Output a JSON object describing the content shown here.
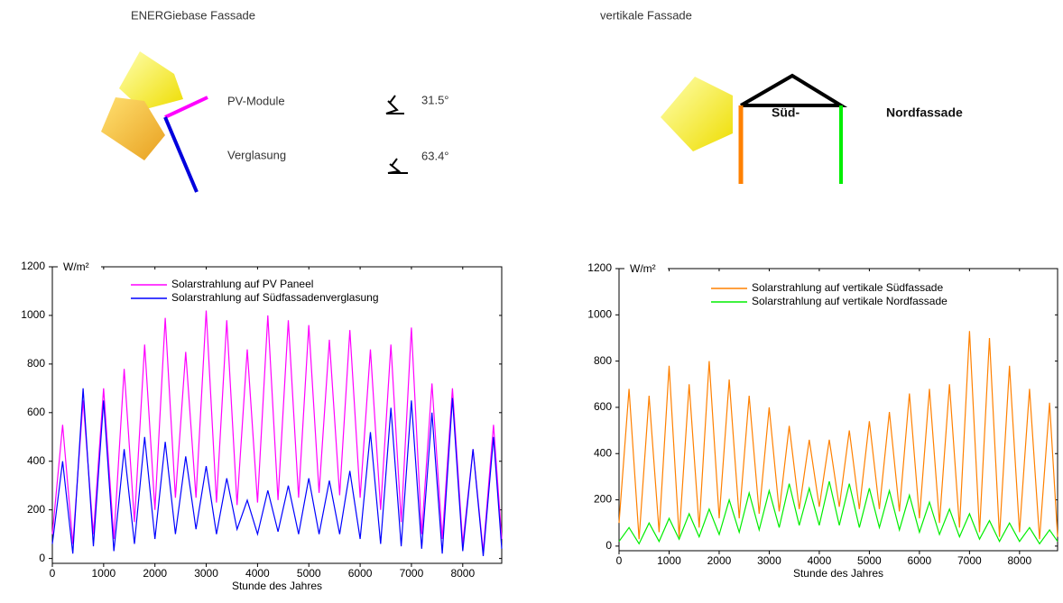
{
  "diagram": {
    "left_title": "ENERGiebase Fassade",
    "pv_label": "PV-Module",
    "pv_angle": "31.5°",
    "glass_label": "Verglasung",
    "glass_angle": "63.4°",
    "right_title": "vertikale Fassade",
    "south_label": "Süd-",
    "north_label": "Nordfassade"
  },
  "chart_data": [
    {
      "type": "line",
      "y_label": "W/m²",
      "x_label": "Stunde des Jahres",
      "x": [
        0,
        200,
        400,
        600,
        800,
        1000,
        1200,
        1400,
        1600,
        1800,
        2000,
        2200,
        2400,
        2600,
        2800,
        3000,
        3200,
        3400,
        3600,
        3800,
        4000,
        4200,
        4400,
        4600,
        4800,
        5000,
        5200,
        5400,
        5600,
        5800,
        6000,
        6200,
        6400,
        6600,
        6800,
        7000,
        7200,
        7400,
        7600,
        7800,
        8000,
        8200,
        8400,
        8600,
        8760
      ],
      "series": [
        {
          "name": "Solarstrahlung auf PV Paneel",
          "color": "#ff00ff",
          "values": [
            100,
            550,
            60,
            650,
            100,
            700,
            80,
            780,
            150,
            880,
            200,
            990,
            250,
            850,
            250,
            1020,
            230,
            980,
            220,
            860,
            230,
            1000,
            240,
            980,
            250,
            960,
            270,
            900,
            260,
            940,
            250,
            860,
            200,
            880,
            150,
            950,
            100,
            720,
            80,
            700,
            60,
            450,
            30,
            550,
            80
          ]
        },
        {
          "name": "Solarstrahlung auf Südfassadenverglasung",
          "color": "#0000ff",
          "values": [
            60,
            400,
            20,
            700,
            50,
            650,
            30,
            450,
            60,
            500,
            80,
            480,
            100,
            420,
            120,
            380,
            100,
            330,
            120,
            240,
            100,
            280,
            110,
            300,
            100,
            330,
            100,
            320,
            100,
            360,
            80,
            520,
            60,
            620,
            50,
            650,
            40,
            600,
            20,
            660,
            30,
            450,
            10,
            500,
            40
          ]
        }
      ],
      "xlim": [
        0,
        8760
      ],
      "xticks": [
        0,
        1000,
        2000,
        3000,
        4000,
        5000,
        6000,
        7000,
        8000
      ],
      "ylim": [
        -20,
        1200
      ],
      "yticks": [
        0,
        200,
        400,
        600,
        800,
        1000,
        1200
      ]
    },
    {
      "type": "line",
      "y_label": "W/m²",
      "x_label": "Stunde des Jahres",
      "x": [
        0,
        200,
        400,
        600,
        800,
        1000,
        1200,
        1400,
        1600,
        1800,
        2000,
        2200,
        2400,
        2600,
        2800,
        3000,
        3200,
        3400,
        3600,
        3800,
        4000,
        4200,
        4400,
        4600,
        4800,
        5000,
        5200,
        5400,
        5600,
        5800,
        6000,
        6200,
        6400,
        6600,
        6800,
        7000,
        7200,
        7400,
        7600,
        7800,
        8000,
        8200,
        8400,
        8600,
        8760
      ],
      "series": [
        {
          "name": "Solarstrahlung auf vertikale Südfassade",
          "color": "#ff8000",
          "values": [
            100,
            680,
            30,
            650,
            60,
            780,
            40,
            700,
            80,
            800,
            120,
            720,
            120,
            650,
            140,
            600,
            150,
            520,
            160,
            460,
            170,
            460,
            170,
            500,
            160,
            540,
            160,
            580,
            150,
            660,
            120,
            680,
            100,
            700,
            80,
            930,
            60,
            900,
            40,
            780,
            60,
            680,
            30,
            620,
            40
          ]
        },
        {
          "name": "Solarstrahlung auf vertikale Nordfassade",
          "color": "#00ee00",
          "values": [
            20,
            80,
            10,
            100,
            20,
            120,
            30,
            140,
            40,
            160,
            50,
            200,
            60,
            230,
            70,
            240,
            80,
            270,
            90,
            250,
            90,
            280,
            90,
            270,
            80,
            250,
            80,
            240,
            70,
            220,
            60,
            190,
            50,
            160,
            40,
            140,
            30,
            110,
            20,
            100,
            20,
            80,
            10,
            70,
            20
          ]
        }
      ],
      "xlim": [
        0,
        8760
      ],
      "xticks": [
        0,
        1000,
        2000,
        3000,
        4000,
        5000,
        6000,
        7000,
        8000
      ],
      "ylim": [
        -20,
        1200
      ],
      "yticks": [
        0,
        200,
        400,
        600,
        800,
        1000,
        1200
      ]
    }
  ]
}
